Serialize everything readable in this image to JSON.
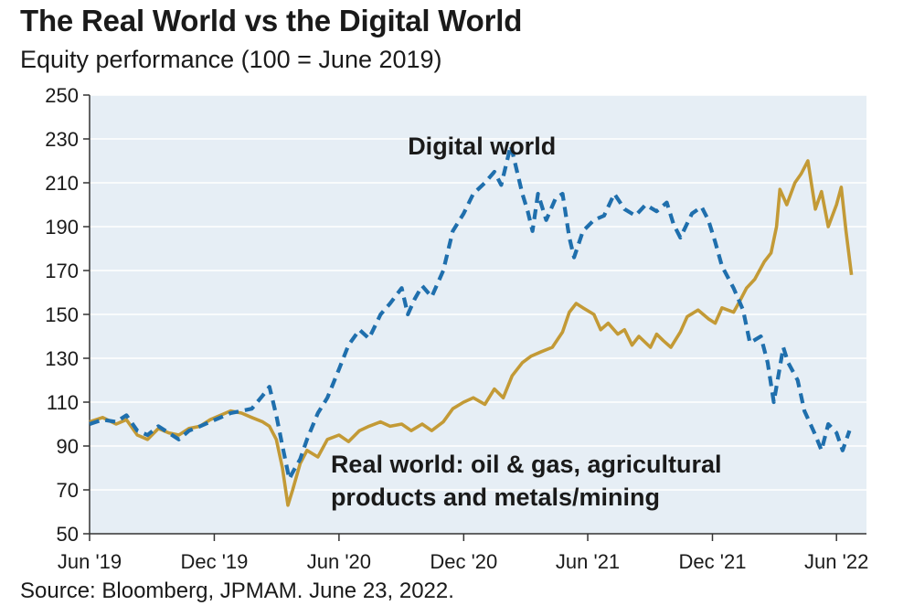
{
  "header": {
    "title": "The Real World vs the Digital World",
    "subtitle": "Equity performance (100 = June 2019)"
  },
  "footer": {
    "source": "Source: Bloomberg, JPMAM. June 23, 2022."
  },
  "colors": {
    "plot_background": "#e6eef5",
    "grid": "#ffffff",
    "digital_series": "#1f6fad",
    "real_series": "#c39a36"
  },
  "chart_data": {
    "type": "line",
    "title": "The Real World vs the Digital World",
    "subtitle": "Equity performance (100 = June 2019)",
    "xlabel": "",
    "ylabel": "",
    "ylim": [
      50,
      250
    ],
    "yticks": [
      50,
      70,
      90,
      110,
      130,
      150,
      170,
      190,
      210,
      230,
      250
    ],
    "xlim": [
      "2019-06-01",
      "2022-07-15"
    ],
    "xticks": [
      {
        "date": "2019-06-01",
        "label": "Jun '19"
      },
      {
        "date": "2019-12-01",
        "label": "Dec '19"
      },
      {
        "date": "2020-06-01",
        "label": "Jun '20"
      },
      {
        "date": "2020-12-01",
        "label": "Dec '20"
      },
      {
        "date": "2021-06-01",
        "label": "Jun '21"
      },
      {
        "date": "2021-12-01",
        "label": "Dec '21"
      },
      {
        "date": "2022-06-01",
        "label": "Jun '22"
      }
    ],
    "grid": true,
    "legend": "none",
    "annotations": [
      {
        "text": "Digital world",
        "x": "2020-09-10",
        "y": 223
      },
      {
        "text": "Real world: oil & gas, agricultural",
        "x": "2020-05-20",
        "y": 78
      },
      {
        "text": "products and metals/mining",
        "x": "2020-05-20",
        "y": 63
      }
    ],
    "series": [
      {
        "key": "digital",
        "style": "dashed",
        "points": [
          [
            "2019-06-01",
            100
          ],
          [
            "2019-06-20",
            102
          ],
          [
            "2019-07-10",
            101
          ],
          [
            "2019-07-25",
            104
          ],
          [
            "2019-08-10",
            97
          ],
          [
            "2019-08-25",
            95
          ],
          [
            "2019-09-10",
            99
          ],
          [
            "2019-09-25",
            96
          ],
          [
            "2019-10-10",
            93
          ],
          [
            "2019-10-25",
            97
          ],
          [
            "2019-11-10",
            99
          ],
          [
            "2019-11-25",
            101
          ],
          [
            "2019-12-10",
            103
          ],
          [
            "2019-12-25",
            105
          ],
          [
            "2020-01-10",
            106
          ],
          [
            "2020-01-25",
            107
          ],
          [
            "2020-02-10",
            113
          ],
          [
            "2020-02-20",
            117
          ],
          [
            "2020-03-01",
            104
          ],
          [
            "2020-03-10",
            90
          ],
          [
            "2020-03-20",
            75
          ],
          [
            "2020-03-25",
            78
          ],
          [
            "2020-04-05",
            84
          ],
          [
            "2020-04-15",
            93
          ],
          [
            "2020-05-01",
            105
          ],
          [
            "2020-05-15",
            112
          ],
          [
            "2020-06-01",
            125
          ],
          [
            "2020-06-15",
            136
          ],
          [
            "2020-07-01",
            143
          ],
          [
            "2020-07-15",
            139
          ],
          [
            "2020-08-01",
            150
          ],
          [
            "2020-08-15",
            155
          ],
          [
            "2020-09-01",
            162
          ],
          [
            "2020-09-10",
            150
          ],
          [
            "2020-09-20",
            157
          ],
          [
            "2020-10-01",
            163
          ],
          [
            "2020-10-15",
            158
          ],
          [
            "2020-11-01",
            170
          ],
          [
            "2020-11-15",
            188
          ],
          [
            "2020-12-01",
            196
          ],
          [
            "2020-12-15",
            205
          ],
          [
            "2021-01-01",
            210
          ],
          [
            "2021-01-15",
            215
          ],
          [
            "2021-01-25",
            209
          ],
          [
            "2021-02-08",
            227
          ],
          [
            "2021-02-12",
            222
          ],
          [
            "2021-02-25",
            205
          ],
          [
            "2021-03-05",
            197
          ],
          [
            "2021-03-12",
            188
          ],
          [
            "2021-03-20",
            205
          ],
          [
            "2021-04-01",
            193
          ],
          [
            "2021-04-15",
            203
          ],
          [
            "2021-04-25",
            205
          ],
          [
            "2021-05-05",
            185
          ],
          [
            "2021-05-12",
            176
          ],
          [
            "2021-05-25",
            188
          ],
          [
            "2021-06-10",
            193
          ],
          [
            "2021-06-25",
            195
          ],
          [
            "2021-07-10",
            205
          ],
          [
            "2021-07-25",
            198
          ],
          [
            "2021-08-10",
            195
          ],
          [
            "2021-08-25",
            200
          ],
          [
            "2021-09-10",
            197
          ],
          [
            "2021-09-25",
            201
          ],
          [
            "2021-10-05",
            191
          ],
          [
            "2021-10-15",
            185
          ],
          [
            "2021-11-01",
            196
          ],
          [
            "2021-11-15",
            199
          ],
          [
            "2021-11-25",
            193
          ],
          [
            "2021-12-05",
            183
          ],
          [
            "2021-12-15",
            172
          ],
          [
            "2022-01-01",
            162
          ],
          [
            "2022-01-15",
            152
          ],
          [
            "2022-01-25",
            137
          ],
          [
            "2022-02-10",
            140
          ],
          [
            "2022-02-20",
            128
          ],
          [
            "2022-03-01",
            110
          ],
          [
            "2022-03-15",
            135
          ],
          [
            "2022-03-22",
            128
          ],
          [
            "2022-04-05",
            120
          ],
          [
            "2022-04-15",
            106
          ],
          [
            "2022-05-01",
            95
          ],
          [
            "2022-05-10",
            88
          ],
          [
            "2022-05-20",
            100
          ],
          [
            "2022-06-01",
            96
          ],
          [
            "2022-06-10",
            88
          ],
          [
            "2022-06-20",
            97
          ]
        ]
      },
      {
        "key": "real",
        "style": "solid",
        "points": [
          [
            "2019-06-01",
            101
          ],
          [
            "2019-06-20",
            103
          ],
          [
            "2019-07-10",
            100
          ],
          [
            "2019-07-25",
            102
          ],
          [
            "2019-08-10",
            95
          ],
          [
            "2019-08-25",
            93
          ],
          [
            "2019-09-10",
            98
          ],
          [
            "2019-09-25",
            96
          ],
          [
            "2019-10-10",
            95
          ],
          [
            "2019-10-25",
            98
          ],
          [
            "2019-11-10",
            99
          ],
          [
            "2019-11-25",
            102
          ],
          [
            "2019-12-10",
            104
          ],
          [
            "2019-12-25",
            106
          ],
          [
            "2020-01-10",
            105
          ],
          [
            "2020-01-25",
            103
          ],
          [
            "2020-02-10",
            101
          ],
          [
            "2020-02-20",
            99
          ],
          [
            "2020-03-01",
            93
          ],
          [
            "2020-03-10",
            80
          ],
          [
            "2020-03-18",
            63
          ],
          [
            "2020-03-25",
            70
          ],
          [
            "2020-04-05",
            82
          ],
          [
            "2020-04-15",
            88
          ],
          [
            "2020-05-01",
            85
          ],
          [
            "2020-05-15",
            93
          ],
          [
            "2020-06-01",
            95
          ],
          [
            "2020-06-15",
            92
          ],
          [
            "2020-07-01",
            97
          ],
          [
            "2020-07-15",
            99
          ],
          [
            "2020-08-01",
            101
          ],
          [
            "2020-08-15",
            99
          ],
          [
            "2020-09-01",
            100
          ],
          [
            "2020-09-15",
            97
          ],
          [
            "2020-10-01",
            100
          ],
          [
            "2020-10-15",
            97
          ],
          [
            "2020-11-01",
            101
          ],
          [
            "2020-11-15",
            107
          ],
          [
            "2020-12-01",
            110
          ],
          [
            "2020-12-15",
            112
          ],
          [
            "2021-01-01",
            109
          ],
          [
            "2021-01-15",
            116
          ],
          [
            "2021-01-28",
            112
          ],
          [
            "2021-02-10",
            122
          ],
          [
            "2021-02-25",
            128
          ],
          [
            "2021-03-10",
            131
          ],
          [
            "2021-03-25",
            133
          ],
          [
            "2021-04-10",
            135
          ],
          [
            "2021-04-25",
            142
          ],
          [
            "2021-05-05",
            151
          ],
          [
            "2021-05-15",
            155
          ],
          [
            "2021-05-25",
            153
          ],
          [
            "2021-06-10",
            150
          ],
          [
            "2021-06-20",
            143
          ],
          [
            "2021-07-01",
            146
          ],
          [
            "2021-07-15",
            141
          ],
          [
            "2021-07-25",
            143
          ],
          [
            "2021-08-05",
            136
          ],
          [
            "2021-08-15",
            140
          ],
          [
            "2021-09-01",
            135
          ],
          [
            "2021-09-10",
            141
          ],
          [
            "2021-09-20",
            138
          ],
          [
            "2021-10-01",
            135
          ],
          [
            "2021-10-15",
            142
          ],
          [
            "2021-10-25",
            149
          ],
          [
            "2021-11-10",
            152
          ],
          [
            "2021-11-25",
            148
          ],
          [
            "2021-12-05",
            146
          ],
          [
            "2021-12-15",
            153
          ],
          [
            "2022-01-01",
            151
          ],
          [
            "2022-01-10",
            156
          ],
          [
            "2022-01-20",
            162
          ],
          [
            "2022-02-01",
            166
          ],
          [
            "2022-02-15",
            174
          ],
          [
            "2022-02-25",
            178
          ],
          [
            "2022-03-05",
            190
          ],
          [
            "2022-03-10",
            207
          ],
          [
            "2022-03-20",
            200
          ],
          [
            "2022-04-01",
            210
          ],
          [
            "2022-04-10",
            214
          ],
          [
            "2022-04-20",
            220
          ],
          [
            "2022-05-01",
            198
          ],
          [
            "2022-05-10",
            206
          ],
          [
            "2022-05-20",
            190
          ],
          [
            "2022-06-01",
            200
          ],
          [
            "2022-06-08",
            208
          ],
          [
            "2022-06-15",
            188
          ],
          [
            "2022-06-23",
            168
          ]
        ]
      }
    ]
  }
}
